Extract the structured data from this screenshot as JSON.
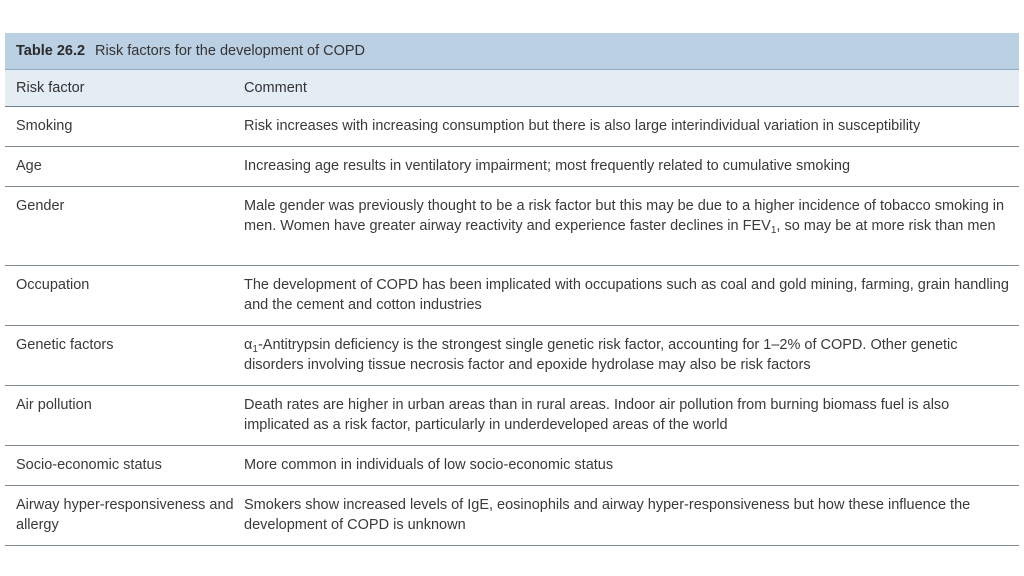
{
  "table": {
    "number": "Table 26.2",
    "title": "Risk factors for the development of COPD",
    "headers": {
      "factor": "Risk factor",
      "comment": "Comment"
    },
    "rows": [
      {
        "factor": "Smoking",
        "comment": "Risk increases with increasing consumption but there is also large interindividual variation in susceptibility"
      },
      {
        "factor": "Age",
        "comment": "Increasing age results in ventilatory impairment; most frequently related to cumulative smoking"
      },
      {
        "factor": "Gender",
        "comment_a": "Male gender was previously thought to be a risk factor but this may be due to a higher incidence of tobacco smoking in men. Women have greater airway reactivity and experience faster declines in FEV",
        "comment_sub": "1",
        "comment_b": ", so may be at more risk than men"
      },
      {
        "factor": "Occupation",
        "comment": "The development of COPD has been implicated with occupations such as coal and gold mining, farming, grain handling and the cement and cotton industries"
      },
      {
        "factor": "Genetic factors",
        "comment_a": "α",
        "comment_sub": "1",
        "comment_b": "-Antitrypsin deficiency is the strongest single genetic risk factor, accounting for 1–2% of COPD. Other genetic disorders involving tissue necrosis factor and epoxide hydrolase may also be risk factors"
      },
      {
        "factor": "Air pollution",
        "comment": "Death rates are higher in urban areas than in rural areas. Indoor air pollution from burning biomass fuel is also implicated as a risk factor, particularly in underdeveloped areas of the world"
      },
      {
        "factor": "Socio-economic status",
        "comment": "More common in individuals of low socio-economic status"
      },
      {
        "factor": "Airway hyper-responsiveness and allergy",
        "comment": "Smokers show increased levels of IgE, eosinophils and airway hyper-responsiveness but how these influence the development of COPD is unknown"
      }
    ]
  },
  "colors": {
    "title_bg": "#bcd0e4",
    "header_bg": "#e4ecf4",
    "text": "#3a3a3a"
  }
}
